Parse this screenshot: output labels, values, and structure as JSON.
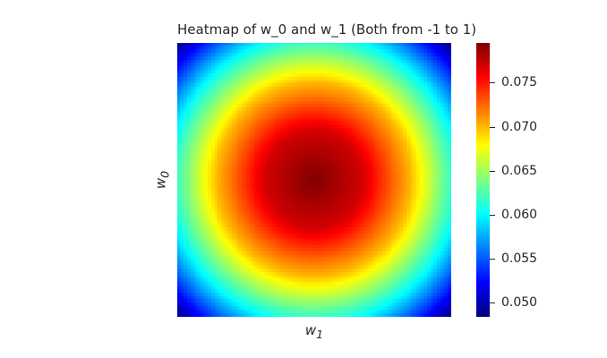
{
  "chart_data": {
    "type": "heatmap",
    "title": "Heatmap of w_0 and w_1 (Both from -1 to 1)",
    "xlabel": "w",
    "xlabel_sub": "1",
    "ylabel": "w",
    "ylabel_sub": "0",
    "x_range": [
      -1,
      1
    ],
    "y_range": [
      -1,
      1
    ],
    "grid": false,
    "x_ticks_visible": false,
    "y_ticks_visible": false,
    "colormap": "jet",
    "value_range": [
      0.0484,
      0.0795
    ],
    "center": [
      0,
      0
    ],
    "corner_value": 0.0484,
    "edge_midpoint_value": 0.0605,
    "center_value": 0.0795,
    "profile_along_diagonal": [
      {
        "w": 0.0,
        "value": 0.0795
      },
      {
        "w": 0.25,
        "value": 0.077
      },
      {
        "w": 0.5,
        "value": 0.07
      },
      {
        "w": 0.75,
        "value": 0.06
      },
      {
        "w": 1.0,
        "value": 0.0484
      }
    ],
    "colorbar": {
      "ticks": [
        0.05,
        0.055,
        0.06,
        0.065,
        0.07,
        0.075
      ],
      "tick_labels": [
        "0.050",
        "0.055",
        "0.060",
        "0.065",
        "0.070",
        "0.075"
      ]
    }
  }
}
